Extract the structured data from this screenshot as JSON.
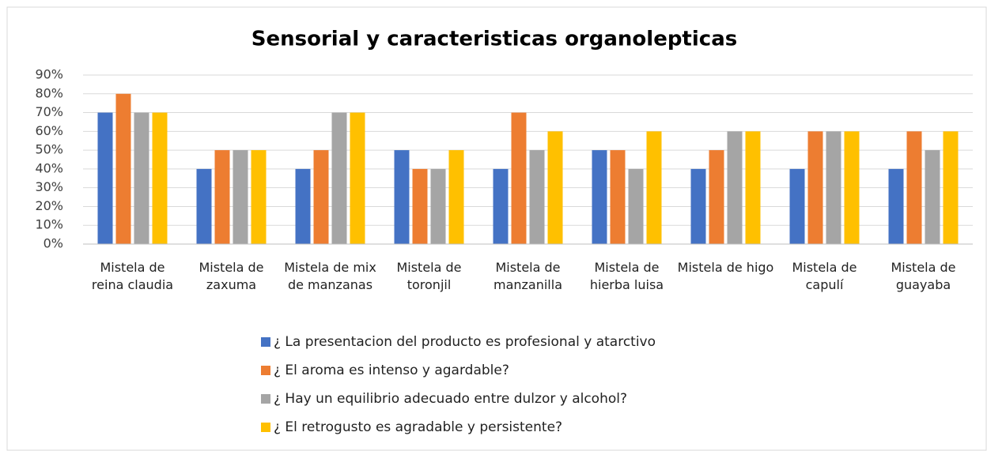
{
  "chart_data": {
    "type": "bar",
    "title": "Sensorial y caracteristicas organolepticas",
    "categories": [
      "Mistela de reina claudia",
      "Mistela de zaxuma",
      "Mistela de mix de manzanas",
      "Mistela de toronjil",
      "Mistela de manzanilla",
      "Mistela de hierba luisa",
      "Mistela de higo",
      "Mistela de capulí",
      "Mistela de guayaba"
    ],
    "series": [
      {
        "name": "¿ La presentacion del producto es profesional y atarctivo",
        "color": "#4472c4",
        "values": [
          70,
          40,
          40,
          50,
          40,
          50,
          40,
          40,
          40
        ]
      },
      {
        "name": "¿ El aroma es intenso y agardable?",
        "color": "#ed7d31",
        "values": [
          80,
          50,
          50,
          40,
          70,
          50,
          50,
          60,
          60
        ]
      },
      {
        "name": "¿ Hay un equilibrio adecuado entre dulzor y alcohol?",
        "color": "#a5a5a5",
        "values": [
          70,
          50,
          70,
          40,
          50,
          40,
          60,
          60,
          50
        ]
      },
      {
        "name": "¿ El retrogusto es agradable y persistente?",
        "color": "#ffc000",
        "values": [
          70,
          50,
          70,
          50,
          60,
          60,
          60,
          60,
          60
        ]
      }
    ],
    "ylim": [
      0,
      90
    ],
    "yticks": [
      {
        "value": 0,
        "label": "0%"
      },
      {
        "value": 10,
        "label": "10%"
      },
      {
        "value": 20,
        "label": "20%"
      },
      {
        "value": 30,
        "label": "30%"
      },
      {
        "value": 40,
        "label": "40%"
      },
      {
        "value": 50,
        "label": "50%"
      },
      {
        "value": 60,
        "label": "60%"
      },
      {
        "value": 70,
        "label": "70%"
      },
      {
        "value": 80,
        "label": "80%"
      },
      {
        "value": 90,
        "label": "90%"
      }
    ],
    "grid": true,
    "legend": "bottom"
  }
}
